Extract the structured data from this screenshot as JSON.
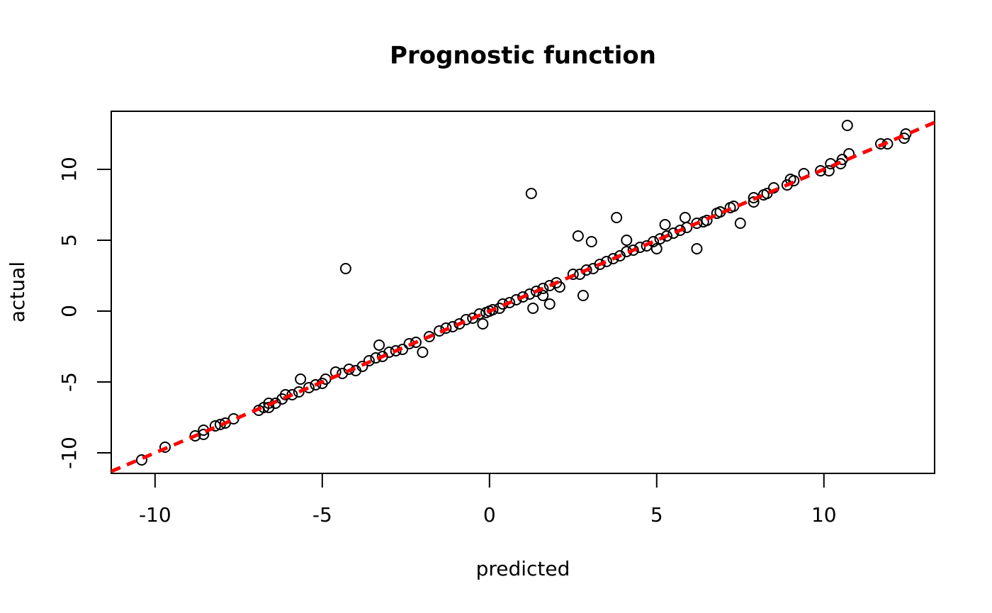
{
  "chart_data": {
    "type": "scatter",
    "title": "Prognostic function",
    "x_label": "predicted",
    "y_label": "actual",
    "x": [
      -4.3,
      1.25,
      3.8,
      2.65,
      3.05,
      6.2,
      7.5,
      10.7,
      2.8,
      1.3,
      1.8,
      -2.0,
      -5.65,
      -3.3,
      -0.2,
      5.85,
      5.25,
      5.0,
      4.1,
      -9.7,
      -10.4,
      12.4,
      12.45,
      11.7,
      11.9,
      10.75,
      10.5,
      10.55,
      10.15,
      10.2,
      9.9,
      9.4,
      9.0,
      8.9,
      8.5,
      8.2,
      7.9,
      7.9,
      7.2,
      6.8,
      6.5,
      6.2,
      5.7,
      -8.8,
      -8.55,
      -8.55,
      -8.2,
      -8.05,
      -7.9,
      -7.65,
      -6.9,
      -6.75,
      -6.6,
      -6.6,
      -6.4,
      -6.2,
      -6.1,
      -5.9,
      -5.7,
      -5.4,
      -5.2,
      -5.0,
      -4.9,
      -4.6,
      -4.4,
      -4.2,
      -4.0,
      -3.8,
      -3.6,
      -3.4,
      -3.2,
      -3.0,
      -2.8,
      -2.6,
      -2.4,
      -2.2,
      -1.8,
      -1.5,
      -1.3,
      -1.1,
      -0.9,
      -0.7,
      -0.5,
      -0.3,
      -0.1,
      0.1,
      0.3,
      0.4,
      0.6,
      0.8,
      1.0,
      1.2,
      1.4,
      1.6,
      1.8,
      2.0,
      2.1,
      2.5,
      2.7,
      2.9,
      3.1,
      3.3,
      3.5,
      3.7,
      3.9,
      4.1,
      4.3,
      4.5,
      4.7,
      4.9,
      5.1,
      5.3,
      5.5,
      5.9,
      6.4,
      6.9,
      7.3,
      8.3,
      9.1,
      0.0,
      1.6
    ],
    "values": [
      3.0,
      8.3,
      6.6,
      5.3,
      4.9,
      4.4,
      6.2,
      13.1,
      1.1,
      0.2,
      0.5,
      -2.9,
      -4.8,
      -2.4,
      -0.9,
      6.6,
      6.1,
      4.4,
      5.0,
      -9.6,
      -10.5,
      12.2,
      12.5,
      11.8,
      11.8,
      11.1,
      10.4,
      10.7,
      9.9,
      10.4,
      9.9,
      9.7,
      9.3,
      8.9,
      8.7,
      8.2,
      8.0,
      7.7,
      7.3,
      6.9,
      6.4,
      6.2,
      5.7,
      -8.8,
      -8.4,
      -8.7,
      -8.1,
      -8.0,
      -7.9,
      -7.6,
      -7.0,
      -6.8,
      -6.5,
      -6.8,
      -6.5,
      -6.2,
      -5.9,
      -5.9,
      -5.7,
      -5.4,
      -5.2,
      -5.1,
      -4.8,
      -4.3,
      -4.4,
      -4.1,
      -4.2,
      -3.9,
      -3.5,
      -3.3,
      -3.2,
      -2.9,
      -2.8,
      -2.7,
      -2.3,
      -2.2,
      -1.8,
      -1.4,
      -1.2,
      -1.1,
      -0.9,
      -0.6,
      -0.5,
      -0.2,
      -0.1,
      0.1,
      0.2,
      0.5,
      0.6,
      0.8,
      1.0,
      1.2,
      1.4,
      1.6,
      1.8,
      2.0,
      1.7,
      2.6,
      2.6,
      2.9,
      3.0,
      3.3,
      3.5,
      3.7,
      3.9,
      4.2,
      4.3,
      4.5,
      4.6,
      4.9,
      5.1,
      5.3,
      5.5,
      5.9,
      6.3,
      7.0,
      7.4,
      8.3,
      9.2,
      0.0,
      1.1
    ],
    "color": "#000000",
    "xlim": [
      -11.31,
      13.31
    ],
    "ylim": [
      -11.45,
      14.1
    ],
    "xticks": [
      -10,
      -5,
      0,
      5,
      10
    ],
    "yticks": [
      -10,
      -5,
      0,
      5,
      10
    ],
    "abline": {
      "intercept": 0,
      "slope": 1,
      "color": "#ff0000",
      "dashed": true
    }
  }
}
